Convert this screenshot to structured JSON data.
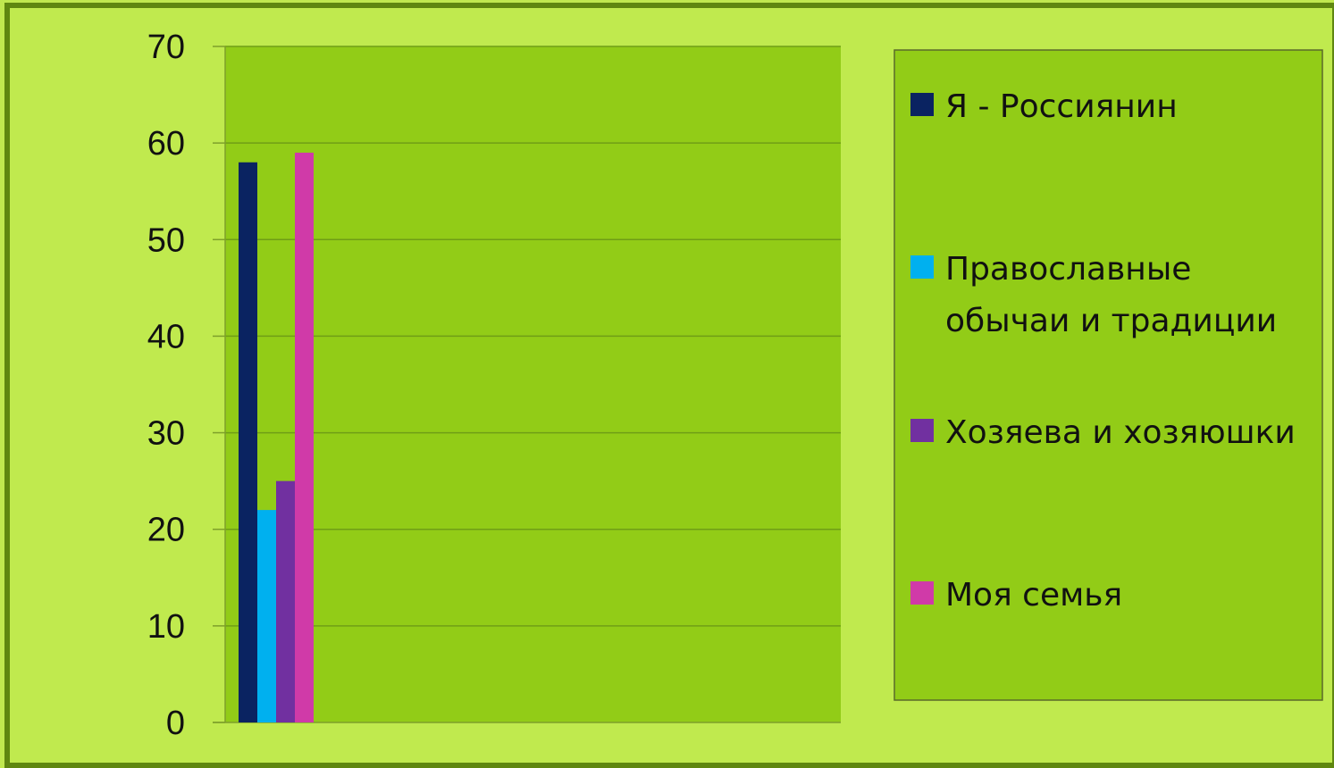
{
  "chart_data": {
    "type": "bar",
    "categories": [
      ""
    ],
    "series": [
      {
        "name": "Я - Россиянин",
        "values": [
          58
        ],
        "color": "#0a2361"
      },
      {
        "name": "Православные обычаи и традиции",
        "values": [
          22
        ],
        "color": "#00b0ef"
      },
      {
        "name": "Хозяева и хозяюшки",
        "values": [
          25
        ],
        "color": "#7130a0"
      },
      {
        "name": "Моя семья",
        "values": [
          59
        ],
        "color": "#d03aa8"
      }
    ],
    "ylim": [
      0,
      70
    ],
    "yticks": [
      "0",
      "10",
      "20",
      "30",
      "40",
      "50",
      "60",
      "70"
    ],
    "title": "",
    "xlabel": "",
    "ylabel": "",
    "grid": true,
    "legend": "right"
  },
  "colors": {
    "background": "#c0ea4e",
    "plot_area": "#92cc17",
    "frame": "#5f8710",
    "gridline": "#6f9e16",
    "legend_border": "#5a6b2a"
  }
}
